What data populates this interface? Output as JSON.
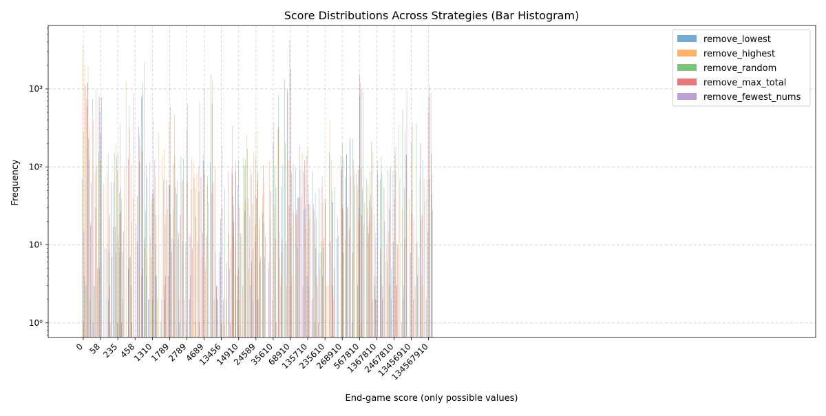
{
  "chart_data": {
    "type": "bar",
    "title": "Score Distributions Across Strategies (Bar Histogram)",
    "xlabel": "End-game score (only possible values)",
    "ylabel": "Frequency",
    "yscale": "log",
    "ylim": [
      0.65,
      6500
    ],
    "y_ticks": [
      1,
      10,
      100,
      1000
    ],
    "y_tick_labels": [
      "10⁰",
      "10¹",
      "10²",
      "10³"
    ],
    "grid": true,
    "legend_position": "upper right",
    "n_bins": 200,
    "x_tick_labels": [
      {
        "bin": 0,
        "label": "0"
      },
      {
        "bin": 10,
        "label": "58"
      },
      {
        "bin": 20,
        "label": "235"
      },
      {
        "bin": 30,
        "label": "458"
      },
      {
        "bin": 40,
        "label": "1310"
      },
      {
        "bin": 50,
        "label": "1789"
      },
      {
        "bin": 60,
        "label": "2789"
      },
      {
        "bin": 70,
        "label": "4689"
      },
      {
        "bin": 80,
        "label": "13456"
      },
      {
        "bin": 90,
        "label": "14910"
      },
      {
        "bin": 100,
        "label": "24589"
      },
      {
        "bin": 110,
        "label": "35610"
      },
      {
        "bin": 120,
        "label": "68910"
      },
      {
        "bin": 130,
        "label": "135710"
      },
      {
        "bin": 140,
        "label": "235610"
      },
      {
        "bin": 150,
        "label": "268910"
      },
      {
        "bin": 160,
        "label": "567810"
      },
      {
        "bin": 170,
        "label": "1367810"
      },
      {
        "bin": 180,
        "label": "2467810"
      },
      {
        "bin": 190,
        "label": "13456910"
      },
      {
        "bin": 200,
        "label": "134567910"
      }
    ],
    "series": [
      {
        "name": "remove_lowest",
        "color": "#1f77b4",
        "peaks": [
          [
            0,
            70
          ],
          [
            3,
            1200
          ],
          [
            6,
            1
          ],
          [
            10,
            520
          ],
          [
            11,
            780
          ],
          [
            15,
            2
          ],
          [
            20,
            1
          ],
          [
            27,
            7
          ],
          [
            34,
            800
          ],
          [
            35,
            1200
          ],
          [
            70,
            120
          ],
          [
            75,
            650
          ],
          [
            80,
            22
          ],
          [
            85,
            5
          ],
          [
            90,
            58
          ],
          [
            100,
            11
          ],
          [
            108,
            6
          ],
          [
            112,
            55
          ],
          [
            117,
            1300
          ],
          [
            120,
            4200
          ],
          [
            130,
            4
          ],
          [
            135,
            9
          ],
          [
            145,
            35
          ],
          [
            150,
            100
          ],
          [
            155,
            220
          ],
          [
            160,
            30
          ],
          [
            168,
            2
          ],
          [
            175,
            20
          ],
          [
            180,
            11
          ],
          [
            190,
            8
          ],
          [
            200,
            15
          ]
        ]
      },
      {
        "name": "remove_highest",
        "color": "#ff7f0e",
        "peaks": [
          [
            0,
            3800
          ],
          [
            1,
            2000
          ],
          [
            2,
            750
          ],
          [
            3,
            2000
          ],
          [
            4,
            300
          ],
          [
            6,
            400
          ],
          [
            9,
            800
          ],
          [
            12,
            60
          ],
          [
            19,
            200
          ],
          [
            25,
            1250
          ],
          [
            27,
            300
          ],
          [
            33,
            190
          ],
          [
            42,
            75
          ],
          [
            44,
            270
          ],
          [
            47,
            170
          ],
          [
            50,
            380
          ],
          [
            53,
            470
          ],
          [
            60,
            1
          ],
          [
            63,
            130
          ],
          [
            75,
            1300
          ],
          [
            80,
            1
          ],
          [
            88,
            11
          ],
          [
            93,
            130
          ],
          [
            95,
            260
          ],
          [
            99,
            160
          ],
          [
            101,
            295
          ],
          [
            108,
            120
          ],
          [
            113,
            310
          ],
          [
            120,
            130
          ],
          [
            129,
            16
          ],
          [
            138,
            55
          ],
          [
            143,
            400
          ],
          [
            150,
            90
          ],
          [
            160,
            20
          ],
          [
            167,
            30
          ],
          [
            168,
            160
          ],
          [
            170,
            4
          ],
          [
            180,
            4
          ],
          [
            183,
            340
          ],
          [
            191,
            360
          ],
          [
            200,
            500
          ],
          [
            202,
            80
          ]
        ]
      },
      {
        "name": "remove_random",
        "color": "#2ca02c",
        "peaks": [
          [
            0,
            280
          ],
          [
            3,
            230
          ],
          [
            9,
            150
          ],
          [
            10,
            120
          ],
          [
            15,
            8
          ],
          [
            19,
            8
          ],
          [
            28,
            20
          ],
          [
            34,
            860
          ],
          [
            40,
            2
          ],
          [
            60,
            300
          ],
          [
            70,
            1000
          ],
          [
            74,
            1500
          ],
          [
            80,
            1
          ],
          [
            90,
            120
          ],
          [
            95,
            170
          ],
          [
            100,
            130
          ],
          [
            110,
            200
          ],
          [
            113,
            820
          ],
          [
            117,
            200
          ],
          [
            130,
            180
          ],
          [
            140,
            40
          ],
          [
            150,
            200
          ],
          [
            156,
            230
          ],
          [
            160,
            800
          ],
          [
            162,
            920
          ],
          [
            167,
            210
          ],
          [
            172,
            70
          ],
          [
            178,
            100
          ],
          [
            181,
            180
          ],
          [
            185,
            550
          ],
          [
            190,
            210
          ],
          [
            193,
            360
          ],
          [
            199,
            70
          ],
          [
            202,
            45
          ]
        ]
      },
      {
        "name": "remove_max_total",
        "color": "#d62728",
        "peaks": [
          [
            0,
            1
          ],
          [
            1,
            1100
          ],
          [
            2,
            600
          ],
          [
            7,
            30
          ],
          [
            10,
            270
          ],
          [
            20,
            1
          ],
          [
            32,
            330
          ],
          [
            34,
            160
          ],
          [
            50,
            60
          ],
          [
            55,
            14
          ],
          [
            60,
            65
          ],
          [
            70,
            80
          ],
          [
            80,
            30
          ],
          [
            85,
            1
          ],
          [
            90,
            30
          ],
          [
            100,
            40
          ],
          [
            108,
            50
          ],
          [
            113,
            330
          ],
          [
            118,
            1000
          ],
          [
            120,
            1800
          ],
          [
            123,
            25
          ],
          [
            130,
            60
          ],
          [
            140,
            35
          ],
          [
            150,
            30
          ],
          [
            160,
            800
          ],
          [
            160,
            1500
          ],
          [
            165,
            14
          ],
          [
            170,
            2
          ],
          [
            180,
            40
          ],
          [
            181,
            3
          ],
          [
            190,
            25
          ],
          [
            195,
            200
          ],
          [
            200,
            800
          ]
        ]
      },
      {
        "name": "remove_fewest_nums",
        "color": "#9467bd",
        "peaks": [
          [
            0,
            15
          ],
          [
            2,
            1200
          ],
          [
            5,
            750
          ],
          [
            7,
            1000
          ],
          [
            9,
            800
          ],
          [
            14,
            150
          ],
          [
            21,
            370
          ],
          [
            26,
            600
          ],
          [
            29,
            870
          ],
          [
            32,
            250
          ],
          [
            35,
            2200
          ],
          [
            40,
            400
          ],
          [
            50,
            600
          ],
          [
            60,
            640
          ],
          [
            67,
            680
          ],
          [
            80,
            190
          ],
          [
            86,
            340
          ],
          [
            95,
            40
          ],
          [
            110,
            370
          ],
          [
            118,
            900
          ],
          [
            125,
            190
          ],
          [
            128,
            80
          ],
          [
            150,
            130
          ],
          [
            154,
            240
          ],
          [
            160,
            1200
          ],
          [
            161,
            1000
          ],
          [
            170,
            120
          ],
          [
            186,
            280
          ],
          [
            187,
            950
          ],
          [
            190,
            50
          ],
          [
            200,
            1100
          ],
          [
            201,
            900
          ]
        ]
      }
    ]
  }
}
